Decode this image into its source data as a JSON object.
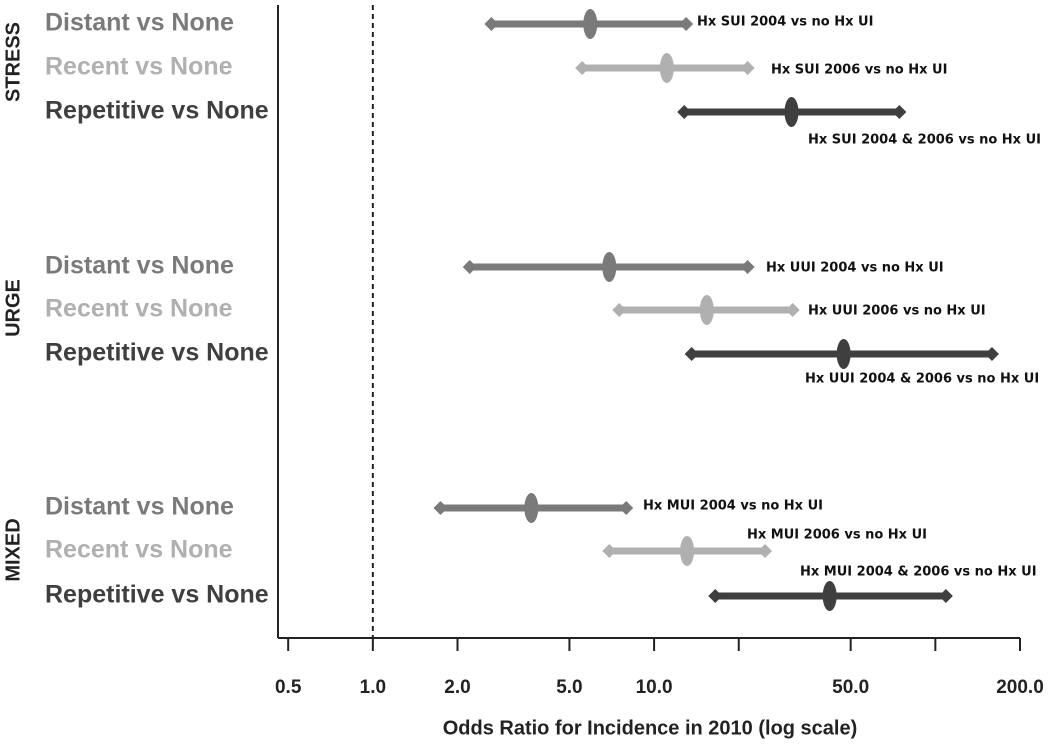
{
  "chart_data": {
    "type": "forest",
    "xlabel": "Odds Ratio for Incidence in 2010 (log scale)",
    "xscale": "log",
    "xlim": [
      0.46,
      200
    ],
    "xticks": [
      {
        "value": 0.5,
        "label": "0.5"
      },
      {
        "value": 1,
        "label": "1.0"
      },
      {
        "value": 2,
        "label": "2.0"
      },
      {
        "value": 5,
        "label": "5.0"
      },
      {
        "value": 10,
        "label": "10.0"
      },
      {
        "value": 20,
        "label": null
      },
      {
        "value": 50,
        "label": "50.0"
      },
      {
        "value": 100,
        "label": null
      },
      {
        "value": 200,
        "label": "200.0"
      }
    ],
    "reference_line": 1,
    "groups": [
      {
        "name": "STRESS",
        "rows": [
          {
            "label": "Distant vs None",
            "color": "#7a7a7a",
            "low": 2.64,
            "estimate": 5.93,
            "high": 13.0,
            "annotation": "Hx SUI 2004 vs no Hx UI"
          },
          {
            "label": "Recent vs None",
            "color": "#b0b0b0",
            "low": 5.55,
            "estimate": 11.1,
            "high": 21.5,
            "annotation": "Hx SUI 2006 vs no Hx UI"
          },
          {
            "label": "Repetitive vs None",
            "color": "#3f3f3f",
            "low": 12.8,
            "estimate": 30.8,
            "high": 74.5,
            "annotation": "Hx SUI 2004 & 2006 vs no Hx UI"
          }
        ]
      },
      {
        "name": "URGE",
        "rows": [
          {
            "label": "Distant vs None",
            "color": "#7a7a7a",
            "low": 2.21,
            "estimate": 6.93,
            "high": 21.5,
            "annotation": "Hx UUI 2004 vs no Hx UI"
          },
          {
            "label": "Recent vs None",
            "color": "#b0b0b0",
            "low": 7.52,
            "estimate": 15.4,
            "high": 31.1,
            "annotation": "Hx UUI 2006 vs no Hx UI"
          },
          {
            "label": "Repetitive vs None",
            "color": "#3f3f3f",
            "low": 13.6,
            "estimate": 47.2,
            "high": 159,
            "annotation": "Hx UUI 2004 & 2006 vs no Hx UI"
          }
        ]
      },
      {
        "name": "MIXED",
        "rows": [
          {
            "label": "Distant vs None",
            "color": "#7a7a7a",
            "low": 1.74,
            "estimate": 3.66,
            "high": 7.96,
            "annotation": "Hx MUI 2004 vs no Hx UI"
          },
          {
            "label": "Recent vs None",
            "color": "#b0b0b0",
            "low": 6.93,
            "estimate": 13.1,
            "high": 24.8,
            "annotation": "Hx MUI 2006 vs no Hx UI"
          },
          {
            "label": "Repetitive vs None",
            "color": "#3f3f3f",
            "low": 16.5,
            "estimate": 42.1,
            "high": 109,
            "annotation": "Hx MUI 2004 & 2006 vs no Hx UI"
          }
        ]
      }
    ]
  }
}
